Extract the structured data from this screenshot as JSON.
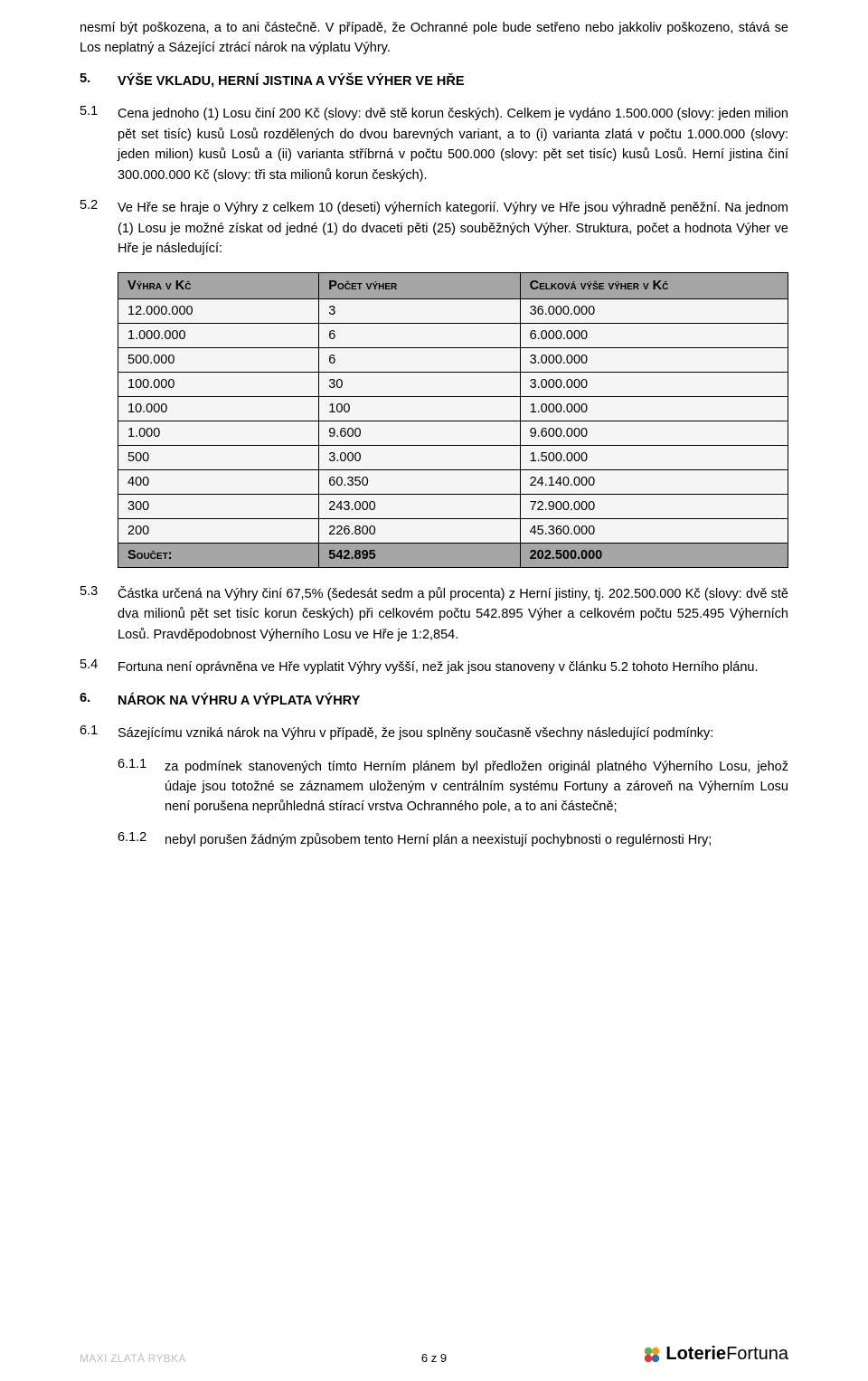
{
  "intro_paragraph": "nesmí být poškozena, a to ani částečně. V případě, že Ochranné pole bude setřeno nebo jakkoliv poškozeno, stává se Los neplatný a Sázející ztrácí nárok na výplatu Výhry.",
  "section5": {
    "num": "5.",
    "heading": "VÝŠE VKLADU, HERNÍ JISTINA A VÝŠE VÝHER VE HŘE",
    "p51_num": "5.1",
    "p51_text": "Cena jednoho (1) Losu činí 200 Kč (slovy: dvě stě korun českých). Celkem je vydáno 1.500.000 (slovy: jeden milion pět set tisíc) kusů Losů rozdělených do dvou barevných variant, a to (i) varianta zlatá v počtu 1.000.000 (slovy: jeden milion) kusů Losů a (ii) varianta stříbrná v počtu 500.000 (slovy: pět set tisíc) kusů Losů. Herní jistina činí 300.000.000 Kč (slovy: tři sta milionů korun českých).",
    "p52_num": "5.2",
    "p52_text": "Ve Hře se hraje o Výhry z celkem 10 (deseti) výherních kategorií. Výhry ve Hře jsou výhradně peněžní. Na jednom (1) Losu je možné získat od jedné (1) do dvaceti pěti (25) souběžných Výher. Struktura, počet a hodnota Výher ve Hře je následující:",
    "table": {
      "col_prize": "Výhra v Kč",
      "col_count": "Počet výher",
      "col_total": "Celková výše výher v Kč",
      "rows": [
        {
          "prize": "12.000.000",
          "count": "3",
          "total": "36.000.000"
        },
        {
          "prize": "1.000.000",
          "count": "6",
          "total": "6.000.000"
        },
        {
          "prize": "500.000",
          "count": "6",
          "total": "3.000.000"
        },
        {
          "prize": "100.000",
          "count": "30",
          "total": "3.000.000"
        },
        {
          "prize": "10.000",
          "count": "100",
          "total": "1.000.000"
        },
        {
          "prize": "1.000",
          "count": "9.600",
          "total": "9.600.000"
        },
        {
          "prize": "500",
          "count": "3.000",
          "total": "1.500.000"
        },
        {
          "prize": "400",
          "count": "60.350",
          "total": "24.140.000"
        },
        {
          "prize": "300",
          "count": "243.000",
          "total": "72.900.000"
        },
        {
          "prize": "200",
          "count": "226.800",
          "total": "45.360.000"
        }
      ],
      "sum_label": "Součet:",
      "sum_count": "542.895",
      "sum_total": "202.500.000"
    },
    "p53_num": "5.3",
    "p53_text": "Částka určená na Výhry činí 67,5% (šedesát sedm a půl procenta) z Herní jistiny, tj. 202.500.000 Kč (slovy: dvě stě dva milionů pět set tisíc korun českých) při celkovém počtu 542.895 Výher a celkovém počtu 525.495 Výherních Losů. Pravděpodobnost Výherního Losu ve Hře je 1:2,854.",
    "p54_num": "5.4",
    "p54_text": "Fortuna není oprávněna ve Hře vyplatit Výhry vyšší, než jak jsou stanoveny v článku 5.2 tohoto Herního plánu."
  },
  "section6": {
    "num": "6.",
    "heading": "NÁROK NA VÝHRU A VÝPLATA VÝHRY",
    "p61_num": "6.1",
    "p61_text": "Sázejícímu vzniká nárok na Výhru v případě, že jsou splněny současně všechny následující podmínky:",
    "p611_num": "6.1.1",
    "p611_text": "za podmínek stanovených tímto Herním plánem byl předložen originál platného Výherního Losu, jehož údaje jsou totožné se záznamem uloženým v centrálním systému Fortuny a zároveň na Výherním Losu není porušena neprůhledná stírací vrstva Ochranného pole, a to ani částečně;",
    "p612_num": "6.1.2",
    "p612_text": "nebyl porušen žádným způsobem tento Herní plán a neexistují pochybnosti o regulérnosti Hry;"
  },
  "footer": {
    "left": "MAXI ZLATÁ RYBKA",
    "center": "6 z 9",
    "logo_loterie": "Loterie",
    "logo_fortuna": "Fortuna"
  },
  "colors": {
    "table_header_bg": "#a6a6a6",
    "table_row_bg": "#f5f5f5",
    "footer_grey": "#bfbfbf",
    "clover_green": "#5fb04a",
    "clover_orange": "#f39b1e",
    "clover_red": "#e63333",
    "clover_blue": "#2f6fb0"
  }
}
